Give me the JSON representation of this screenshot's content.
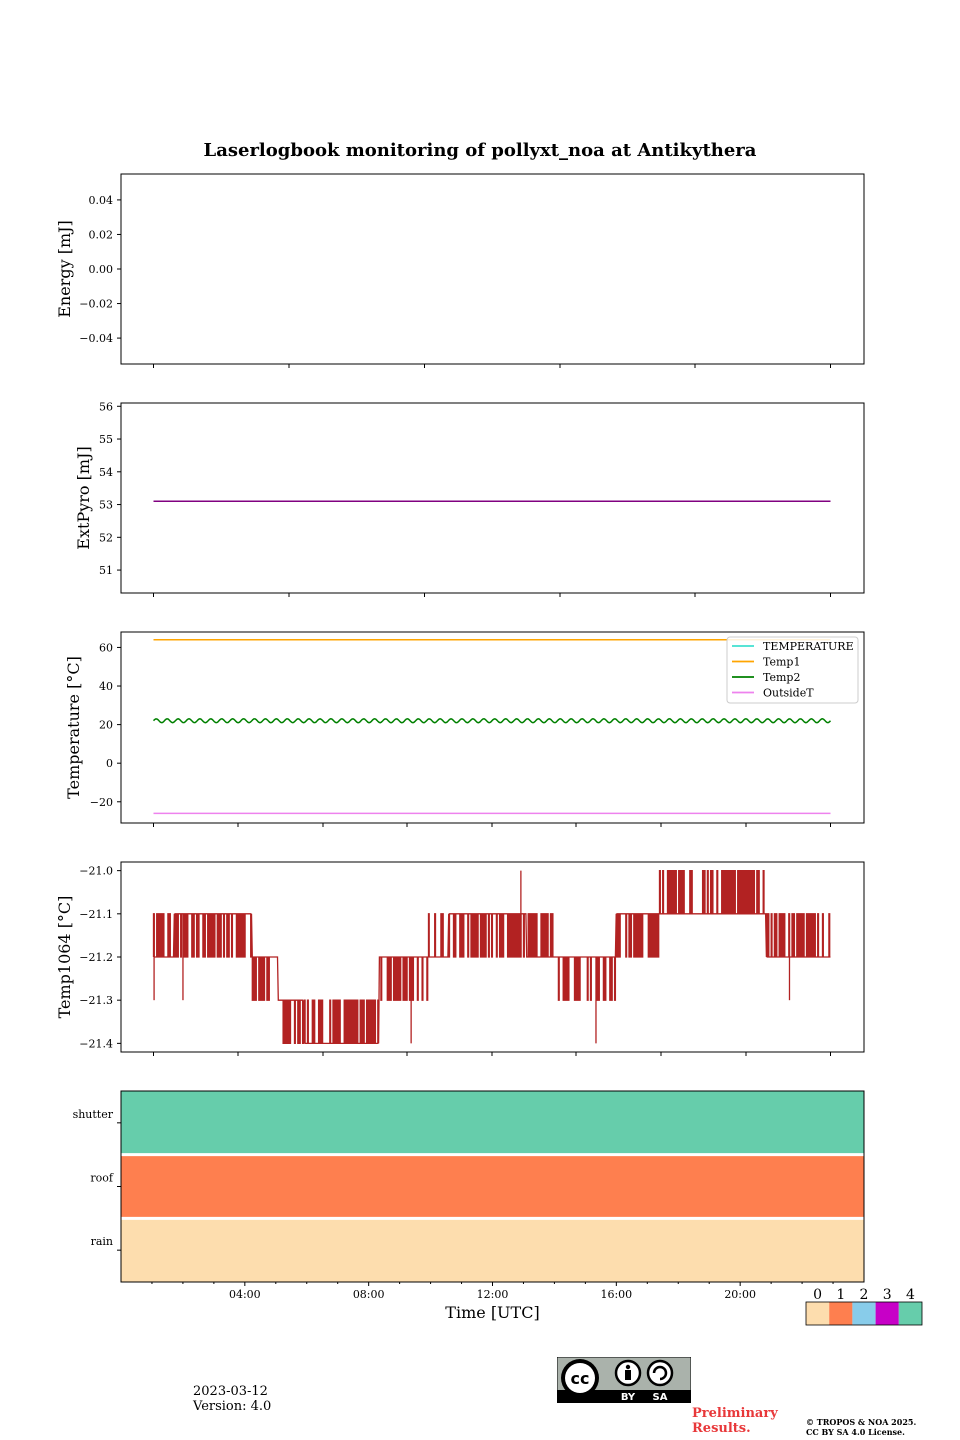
{
  "title": "Laserlogbook monitoring of pollyxt_noa at Antikythera",
  "footer": {
    "date": "2023-03-12",
    "version": "Version: 4.0",
    "preliminary": [
      "Preliminary",
      "Results."
    ],
    "copyright": [
      "© TROPOS & NOA 2025.",
      "CC BY SA 4.0 License."
    ],
    "license_badge": {
      "text": "cc",
      "labels": [
        "BY",
        "SA"
      ]
    }
  },
  "chart_data": [
    {
      "type": "line",
      "name": "energy",
      "ylabel": "Energy [mJ]",
      "ylim": [
        -0.055,
        0.055
      ],
      "yticks": [
        0.04,
        0.02,
        0.0,
        -0.02,
        -0.04
      ],
      "ytick_labels": [
        "0.04",
        "0.02",
        "0.00",
        "−0.02",
        "−0.04"
      ],
      "series": []
    },
    {
      "type": "line",
      "name": "extpyro",
      "ylabel": "ExtPyro [mJ]",
      "ylim": [
        50.3,
        56.1
      ],
      "yticks": [
        51,
        52,
        53,
        54,
        55,
        56
      ],
      "ytick_labels": [
        "51",
        "52",
        "53",
        "54",
        "55",
        "56"
      ],
      "series": [
        {
          "color": "#800080",
          "x": [
            0.28,
            23.72
          ],
          "values": [
            53.1,
            53.1
          ]
        }
      ]
    },
    {
      "type": "line",
      "name": "temperature",
      "ylabel": "Temperature [°C]",
      "ylim": [
        -31,
        68
      ],
      "yticks": [
        60,
        40,
        20,
        0,
        -20
      ],
      "ytick_labels": [
        "60",
        "40",
        "20",
        "0",
        "−20"
      ],
      "legend_position": "top-right",
      "series": [
        {
          "name": "TEMPERATURE",
          "color": "#40e0d0",
          "values": []
        },
        {
          "name": "Temp1",
          "color": "#ffa500",
          "x": [
            0.28,
            23.72
          ],
          "values": [
            64,
            64
          ]
        },
        {
          "name": "Temp2",
          "color": "#008000",
          "x": [
            0.28,
            23.72
          ],
          "values": [
            22,
            22
          ],
          "oscillation_amplitude": 1.0,
          "oscillation_cycles": 62
        },
        {
          "name": "OutsideT",
          "color": "#ee82ee",
          "x": [
            0.28,
            23.72
          ],
          "values": [
            -26,
            -26
          ]
        }
      ]
    },
    {
      "type": "line",
      "name": "temp1064",
      "ylabel": "Temp1064 [°C]",
      "ylim": [
        -21.42,
        -20.98
      ],
      "yticks": [
        -21.0,
        -21.1,
        -21.2,
        -21.3,
        -21.4
      ],
      "ytick_labels": [
        "−21.0",
        "−21.1",
        "−21.2",
        "−21.3",
        "−21.4"
      ],
      "series": [
        {
          "color": "#b22222",
          "segments": [
            {
              "start": 0.28,
              "end": 1.0,
              "low": -21.2,
              "high": -21.1,
              "base": -21.2
            },
            {
              "start": 1.0,
              "end": 3.7,
              "low": -21.2,
              "high": -21.1,
              "base": -21.1
            },
            {
              "start": 3.7,
              "end": 4.6,
              "low": -21.3,
              "high": -21.2,
              "base": -21.2
            },
            {
              "start": 4.6,
              "end": 5.5,
              "low": -21.4,
              "high": -21.3,
              "base": -21.3
            },
            {
              "start": 5.5,
              "end": 8.1,
              "low": -21.4,
              "high": -21.3,
              "base": -21.4
            },
            {
              "start": 8.1,
              "end": 9.8,
              "low": -21.3,
              "high": -21.2,
              "base": -21.2
            },
            {
              "start": 9.8,
              "end": 10.5,
              "low": -21.2,
              "high": -21.1,
              "base": -21.2
            },
            {
              "start": 10.5,
              "end": 13.2,
              "low": -21.2,
              "high": -21.1,
              "base": -21.1
            },
            {
              "start": 13.2,
              "end": 14.3,
              "low": -21.2,
              "high": -21.1,
              "base": -21.2
            },
            {
              "start": 14.3,
              "end": 16.3,
              "low": -21.3,
              "high": -21.2,
              "base": -21.2
            },
            {
              "start": 16.3,
              "end": 17.8,
              "low": -21.2,
              "high": -21.1,
              "base": -21.1
            },
            {
              "start": 17.8,
              "end": 21.5,
              "low": -21.1,
              "high": -21.0,
              "base": -21.1
            },
            {
              "start": 21.5,
              "end": 23.72,
              "low": -21.2,
              "high": -21.1,
              "base": -21.2
            }
          ],
          "spikes": [
            {
              "x": 0.3,
              "value": -21.3
            },
            {
              "x": 1.3,
              "value": -21.3
            },
            {
              "x": 5.3,
              "value": -21.4
            },
            {
              "x": 9.2,
              "value": -21.4
            },
            {
              "x": 13.0,
              "value": -21.0
            },
            {
              "x": 15.6,
              "value": -21.4
            },
            {
              "x": 22.3,
              "value": -21.3
            }
          ]
        }
      ]
    },
    {
      "type": "heatmap",
      "name": "status",
      "xlabel": "Time [UTC]",
      "rows": [
        "shutter",
        "roof",
        "rain"
      ],
      "row_values": [
        4,
        1,
        0
      ],
      "xlim": [
        0,
        24
      ],
      "xticks": [
        4,
        8,
        12,
        16,
        20
      ],
      "xtick_labels": [
        "04:00",
        "08:00",
        "12:00",
        "16:00",
        "20:00"
      ],
      "colorbar": {
        "labels": [
          "0",
          "1",
          "2",
          "3",
          "4"
        ],
        "colors": [
          "#fdddae",
          "#fe7f4f",
          "#88ccea",
          "#c700c7",
          "#66cdab"
        ]
      }
    }
  ]
}
